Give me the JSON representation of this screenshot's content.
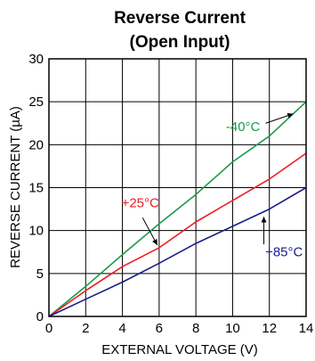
{
  "chart_data": {
    "type": "line",
    "title": "Reverse Current",
    "subtitle": "(Open Input)",
    "xlabel": "EXTERNAL VOLTAGE (V)",
    "ylabel": "REVERSE CURRENT (µA)",
    "xlim": [
      0,
      14
    ],
    "ylim": [
      0,
      30
    ],
    "xticks": [
      0,
      2,
      4,
      6,
      8,
      10,
      12,
      14
    ],
    "yticks": [
      0,
      5,
      10,
      15,
      20,
      25,
      30
    ],
    "grid": true,
    "series": [
      {
        "name": "-40°C",
        "color": "#1a9a4a",
        "x": [
          0,
          2,
          4,
          6,
          8,
          10,
          12,
          14
        ],
        "y": [
          0,
          3.5,
          7.2,
          10.8,
          14.2,
          18,
          21,
          25
        ]
      },
      {
        "name": "+25°C",
        "color": "#ee1c24",
        "x": [
          0,
          2,
          4,
          6,
          8,
          10,
          12,
          14
        ],
        "y": [
          0,
          3,
          5.8,
          8,
          11,
          13.5,
          16,
          19
        ]
      },
      {
        "name": "+85°C",
        "color": "#1c1c8c",
        "x": [
          0,
          2,
          4,
          6,
          8,
          10,
          12,
          14
        ],
        "y": [
          0,
          2,
          4,
          6.2,
          8.5,
          10.5,
          12.5,
          15
        ]
      }
    ]
  }
}
